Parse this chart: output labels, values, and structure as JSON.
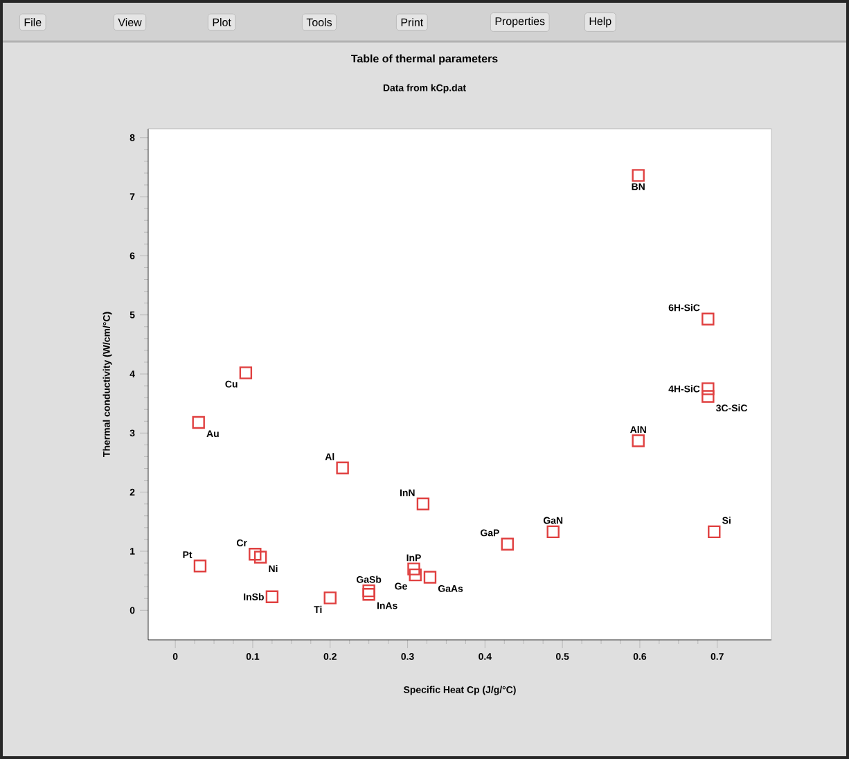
{
  "chart_data": {
    "type": "scatter",
    "title": "Table of thermal parameters",
    "subtitle": "Data from kCp.dat",
    "xlabel": "Specific Heat Cp (J/g/°C)",
    "ylabel": "Thermal conductivity (W/cm/°C)",
    "x": [
      0.091,
      0.03,
      0.216,
      0.32,
      0.032,
      0.103,
      0.11,
      0.125,
      0.2,
      0.25,
      0.25,
      0.308,
      0.31,
      0.329,
      0.429,
      0.488,
      0.696,
      0.598,
      0.598,
      0.688,
      0.688,
      0.688
    ],
    "values": [
      4.02,
      3.18,
      2.41,
      1.8,
      0.75,
      0.95,
      0.9,
      0.23,
      0.21,
      0.33,
      0.27,
      0.7,
      0.6,
      0.56,
      1.12,
      1.33,
      1.33,
      2.87,
      7.36,
      4.93,
      3.75,
      3.62
    ],
    "color": "#e04040",
    "marker": "square",
    "xlim": [
      -0.035,
      0.77
    ],
    "ylim": [
      -0.5,
      8.15
    ],
    "xticks": [
      0,
      0.1,
      0.2,
      0.3,
      0.4,
      0.5,
      0.6,
      0.7
    ],
    "yticks": [
      0,
      1,
      2,
      3,
      4,
      5,
      6,
      7,
      8
    ],
    "annotations": [
      "File",
      "View",
      "Plot",
      "Tools",
      "Print",
      "Properties",
      "Help",
      {
        "text": "Cu",
        "x": 0.091,
        "y": 4.02
      },
      {
        "text": "Au",
        "x": 0.03,
        "y": 3.18
      },
      {
        "text": "Al",
        "x": 0.216,
        "y": 2.41
      },
      {
        "text": "InN",
        "x": 0.32,
        "y": 1.8
      },
      {
        "text": "Pt",
        "x": 0.032,
        "y": 0.75
      },
      {
        "text": "Cr",
        "x": 0.103,
        "y": 0.95
      },
      {
        "text": "Ni",
        "x": 0.11,
        "y": 0.9
      },
      {
        "text": "InSb",
        "x": 0.125,
        "y": 0.23
      },
      {
        "text": "Ti",
        "x": 0.2,
        "y": 0.21
      },
      {
        "text": "GaSb",
        "x": 0.25,
        "y": 0.33
      },
      {
        "text": "InAs",
        "x": 0.25,
        "y": 0.27
      },
      {
        "text": "InP",
        "x": 0.308,
        "y": 0.7
      },
      {
        "text": "Ge",
        "x": 0.31,
        "y": 0.6
      },
      {
        "text": "GaAs",
        "x": 0.329,
        "y": 0.56
      },
      {
        "text": "GaP",
        "x": 0.429,
        "y": 1.12
      },
      {
        "text": "GaN",
        "x": 0.488,
        "y": 1.33
      },
      {
        "text": "Si",
        "x": 0.696,
        "y": 1.33
      },
      {
        "text": "AlN",
        "x": 0.598,
        "y": 2.87
      },
      {
        "text": "BN",
        "x": 0.598,
        "y": 7.36
      },
      {
        "text": "6H-SiC",
        "x": 0.688,
        "y": 4.93
      },
      {
        "text": "4H-SiC",
        "x": 0.688,
        "y": 3.75
      },
      {
        "text": "3C-SiC",
        "x": 0.688,
        "y": 3.62
      }
    ]
  }
}
